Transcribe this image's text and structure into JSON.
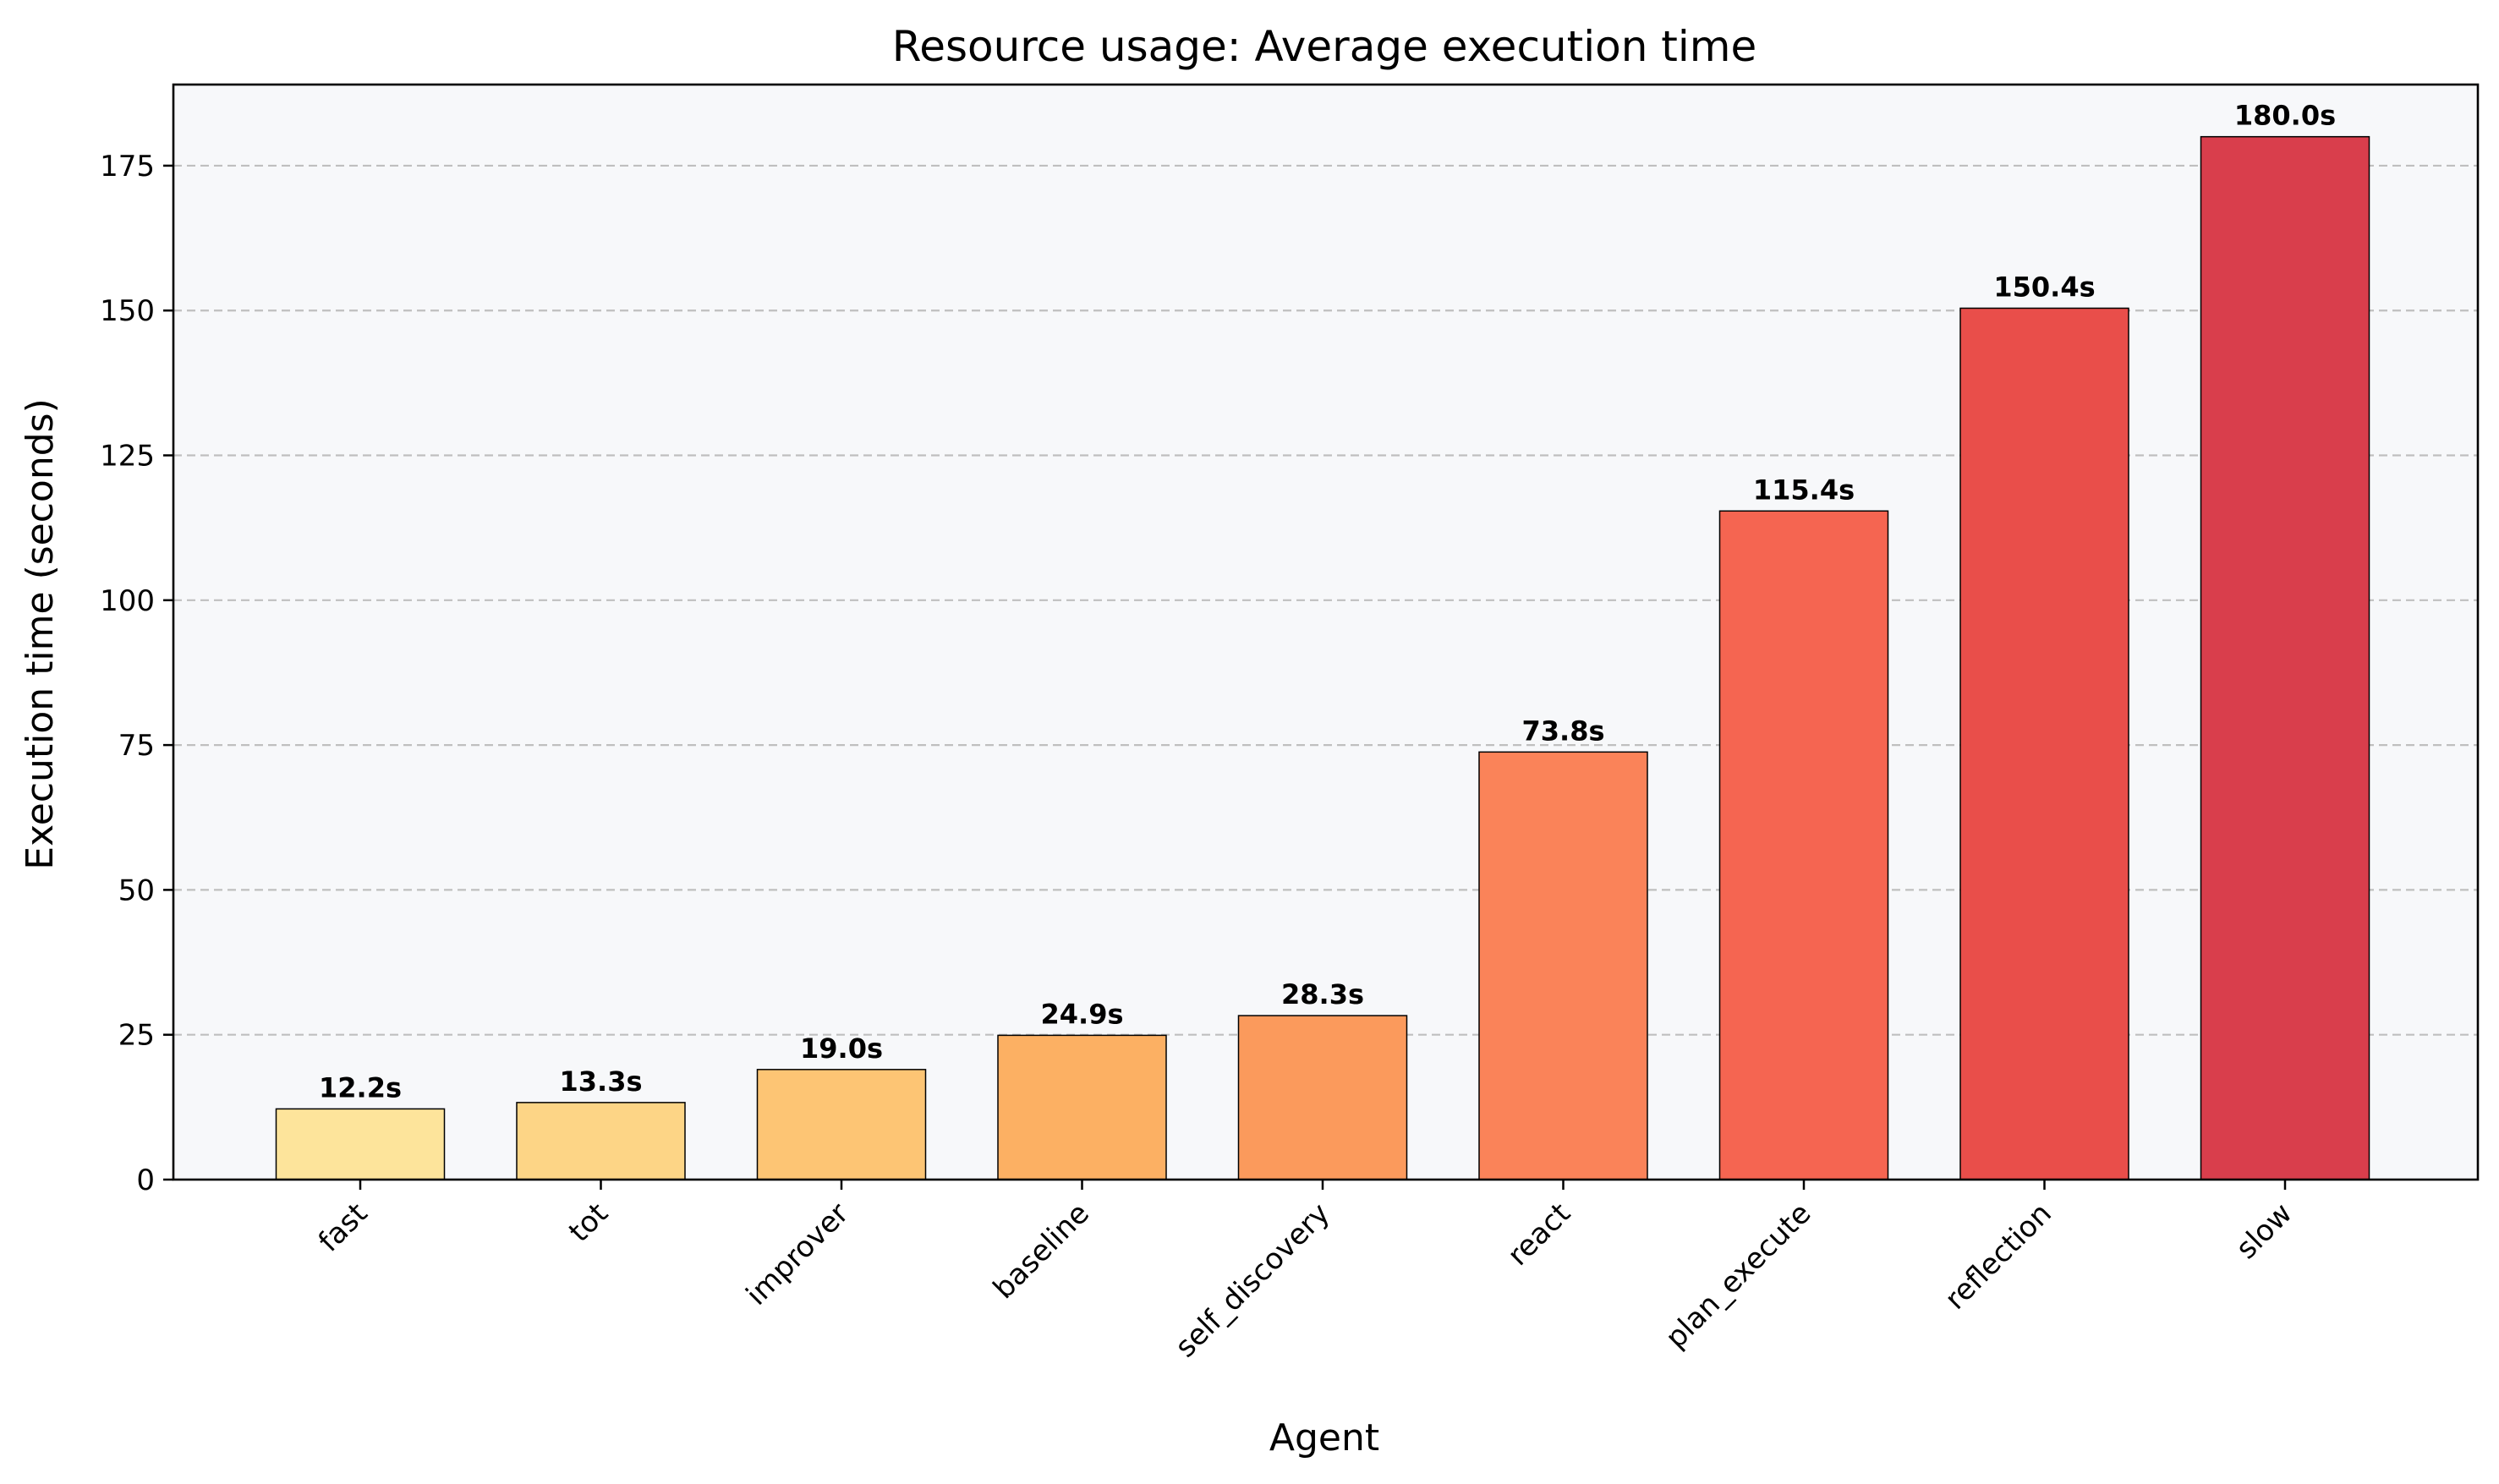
{
  "chart_data": {
    "type": "bar",
    "title": "Resource usage: Average execution time",
    "xlabel": "Agent",
    "ylabel": "Execution time (seconds)",
    "categories": [
      "fast",
      "tot",
      "improver",
      "baseline",
      "self_discovery",
      "react",
      "plan_execute",
      "reflection",
      "slow"
    ],
    "values": [
      12.2,
      13.3,
      19.0,
      24.9,
      28.3,
      73.8,
      115.4,
      150.4,
      180.0
    ],
    "value_labels": [
      "12.2s",
      "13.3s",
      "19.0s",
      "24.9s",
      "28.3s",
      "73.8s",
      "115.4s",
      "150.4s",
      "180.0s"
    ],
    "ylim": [
      0,
      189
    ],
    "yticks": [
      0,
      25,
      50,
      75,
      100,
      125,
      150,
      175
    ],
    "ytick_labels": [
      "0",
      "25",
      "50",
      "75",
      "100",
      "125",
      "150",
      "175"
    ],
    "grid": "y-dashed",
    "colors": [
      "#fde49b",
      "#fdd586",
      "#fdc574",
      "#fcb063",
      "#fb9a5c",
      "#fa8359",
      "#f56551",
      "#e94e4a",
      "#d93e4c"
    ],
    "background": "#f7f8fa",
    "legend": "none"
  }
}
